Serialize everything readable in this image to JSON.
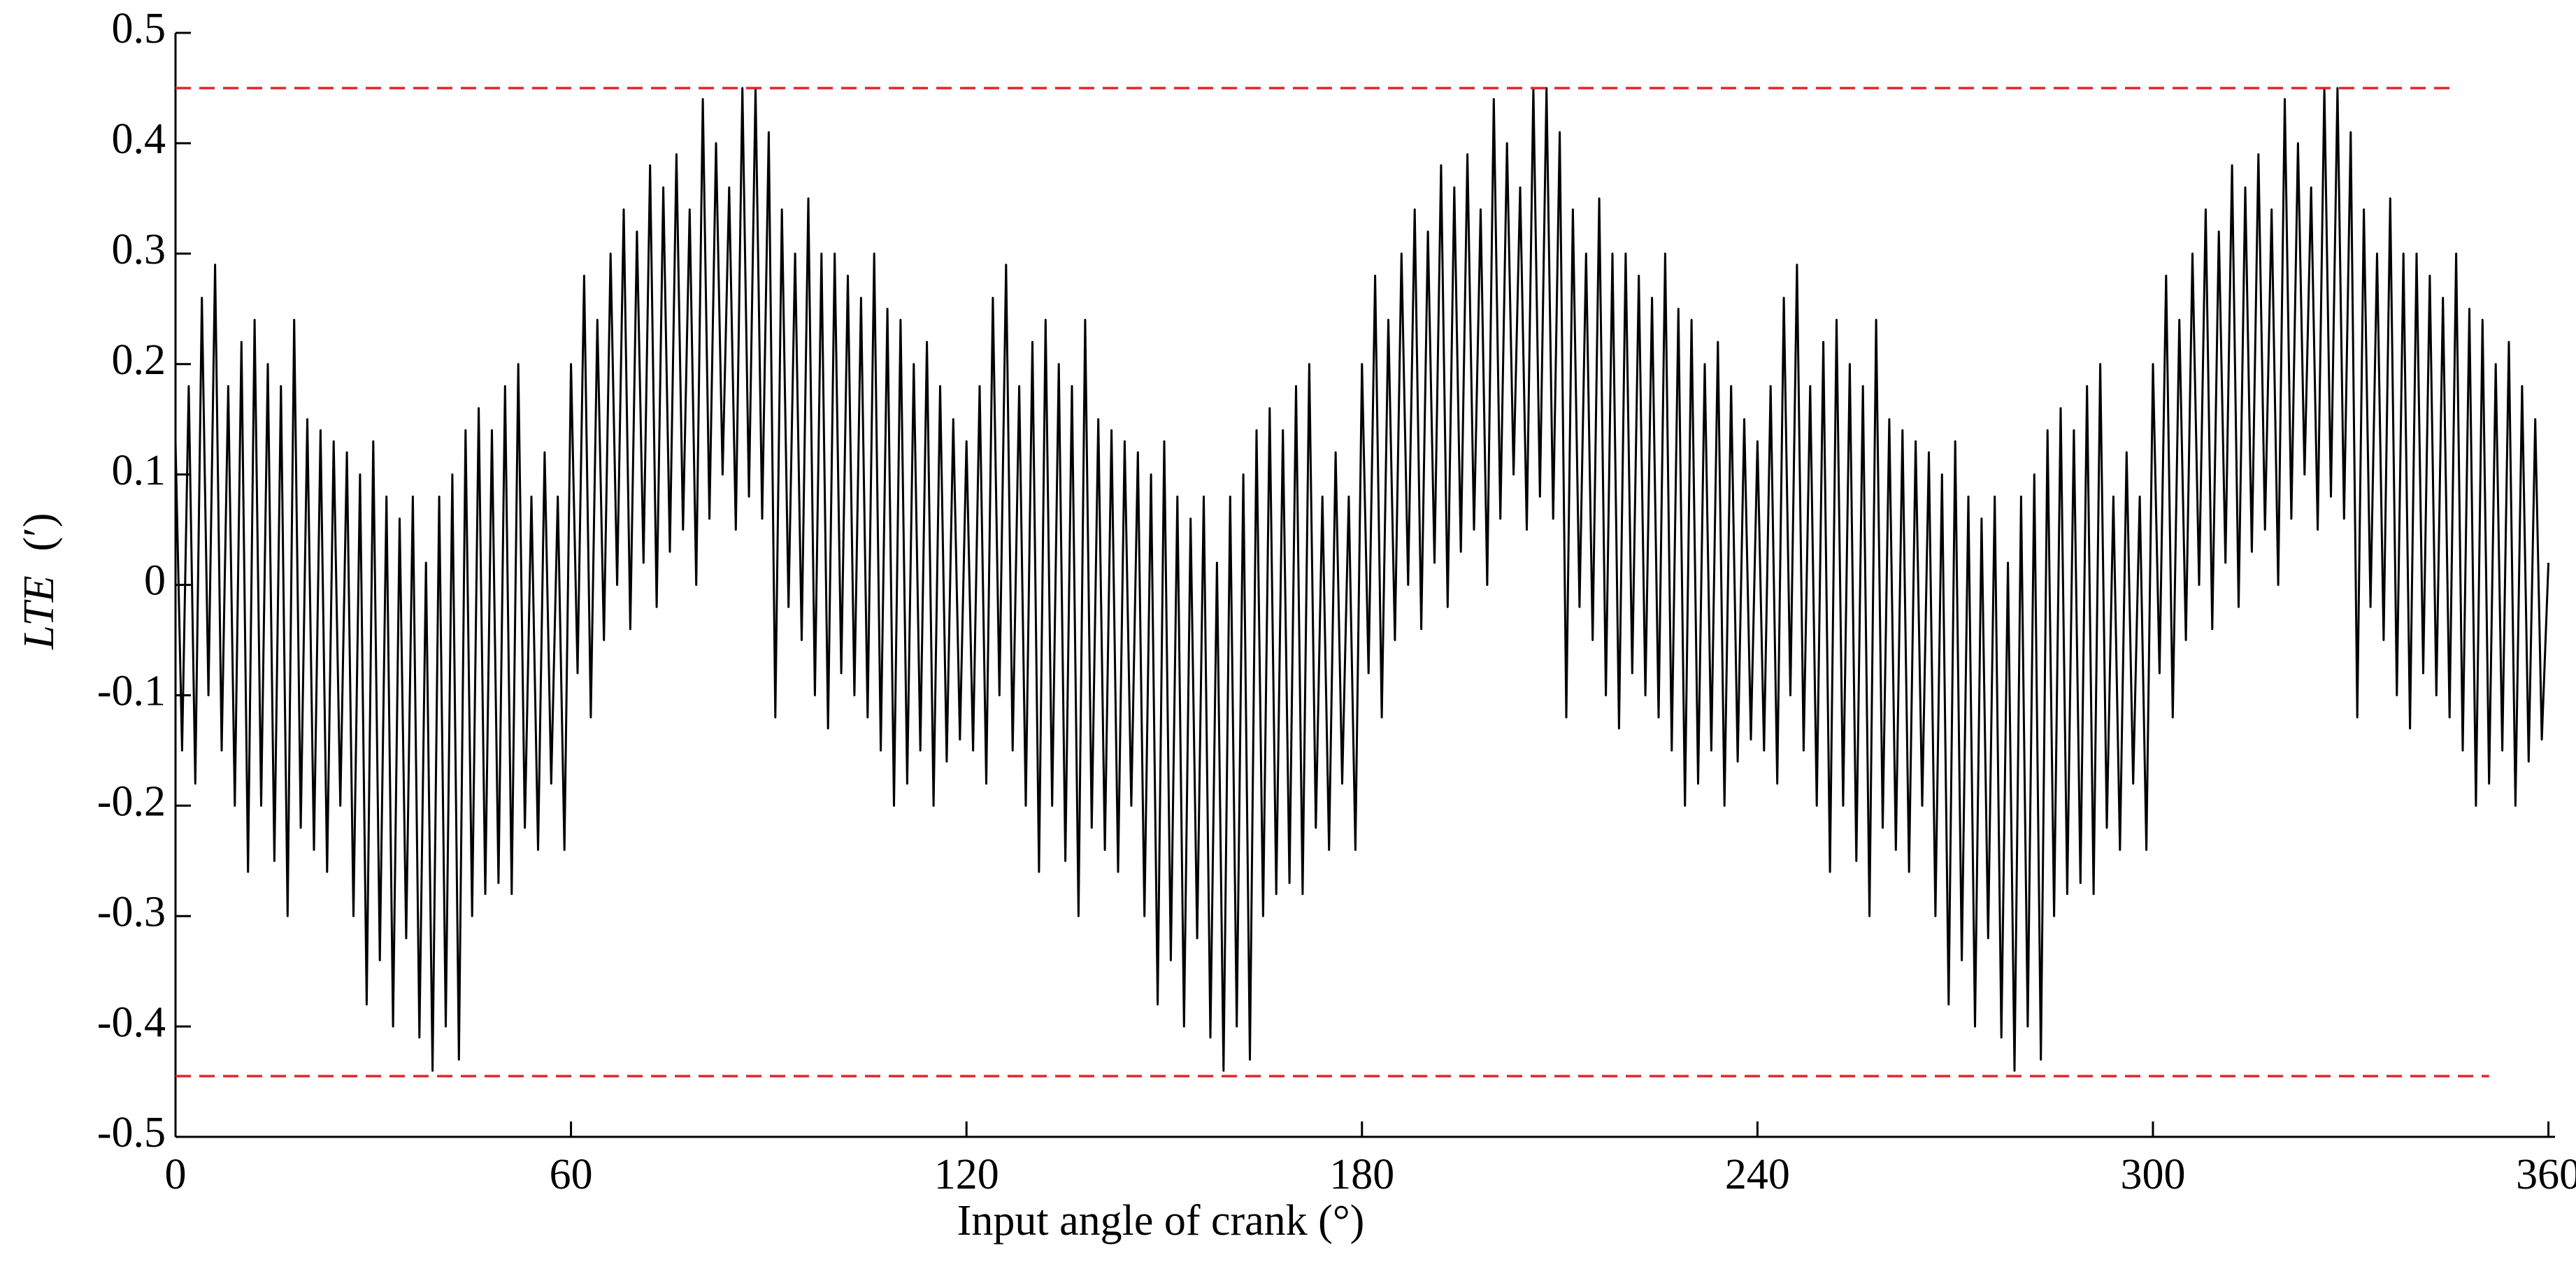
{
  "chart_data": {
    "type": "line",
    "xlabel": "Input angle of crank (°)",
    "ylabel": "LTE",
    "ylabel_unit": "(′)",
    "xlim": [
      0,
      361
    ],
    "ylim": [
      -0.5,
      0.5
    ],
    "xticks": [
      0,
      60,
      120,
      180,
      240,
      300,
      360
    ],
    "yticks": [
      0.5,
      0.4,
      0.3,
      0.2,
      0.1,
      0,
      -0.1,
      -0.2,
      -0.3,
      -0.4,
      -0.5
    ],
    "hlines": [
      {
        "value": 0.45,
        "xrange": [
          0,
          345
        ],
        "color": "#e0262a"
      },
      {
        "value": -0.445,
        "xrange": [
          0,
          351
        ],
        "color": "#e0262a"
      }
    ],
    "series": [
      {
        "color": "#000000",
        "x": [
          0,
          1,
          2,
          3,
          4,
          5,
          6,
          7,
          8,
          9,
          10,
          11,
          12,
          13,
          14,
          15,
          16,
          17,
          18,
          19,
          20,
          21,
          22,
          23,
          24,
          25,
          26,
          27,
          28,
          29,
          30,
          31,
          32,
          33,
          34,
          35,
          36,
          37,
          38,
          39,
          40,
          41,
          42,
          43,
          44,
          45,
          46,
          47,
          48,
          49,
          50,
          51,
          52,
          53,
          54,
          55,
          56,
          57,
          58,
          59,
          60,
          61,
          62,
          63,
          64,
          65,
          66,
          67,
          68,
          69,
          70,
          71,
          72,
          73,
          74,
          75,
          76,
          77,
          78,
          79,
          80,
          81,
          82,
          83,
          84,
          85,
          86,
          87,
          88,
          89,
          90,
          91,
          92,
          93,
          94,
          95,
          96,
          97,
          98,
          99,
          100,
          101,
          102,
          103,
          104,
          105,
          106,
          107,
          108,
          109,
          110,
          111,
          112,
          113,
          114,
          115,
          116,
          117,
          118,
          119,
          120,
          121,
          122,
          123,
          124,
          125,
          126,
          127,
          128,
          129,
          130,
          131,
          132,
          133,
          134,
          135,
          136,
          137,
          138,
          139,
          140,
          141,
          142,
          143,
          144,
          145,
          146,
          147,
          148,
          149,
          150,
          151,
          152,
          153,
          154,
          155,
          156,
          157,
          158,
          159,
          160,
          161,
          162,
          163,
          164,
          165,
          166,
          167,
          168,
          169,
          170,
          171,
          172,
          173,
          174,
          175,
          176,
          177,
          178,
          179,
          180,
          181,
          182,
          183,
          184,
          185,
          186,
          187,
          188,
          189,
          190,
          191,
          192,
          193,
          194,
          195,
          196,
          197,
          198,
          199,
          200,
          201,
          202,
          203,
          204,
          205,
          206,
          207,
          208,
          209,
          210,
          211,
          212,
          213,
          214,
          215,
          216,
          217,
          218,
          219,
          220,
          221,
          222,
          223,
          224,
          225,
          226,
          227,
          228,
          229,
          230,
          231,
          232,
          233,
          234,
          235,
          236,
          237,
          238,
          239,
          240,
          241,
          242,
          243,
          244,
          245,
          246,
          247,
          248,
          249,
          250,
          251,
          252,
          253,
          254,
          255,
          256,
          257,
          258,
          259,
          260,
          261,
          262,
          263,
          264,
          265,
          266,
          267,
          268,
          269,
          270,
          271,
          272,
          273,
          274,
          275,
          276,
          277,
          278,
          279,
          280,
          281,
          282,
          283,
          284,
          285,
          286,
          287,
          288,
          289,
          290,
          291,
          292,
          293,
          294,
          295,
          296,
          297,
          298,
          299,
          300,
          301,
          302,
          303,
          304,
          305,
          306,
          307,
          308,
          309,
          310,
          311,
          312,
          313,
          314,
          315,
          316,
          317,
          318,
          319,
          320,
          321,
          322,
          323,
          324,
          325,
          326,
          327,
          328,
          329,
          330,
          331,
          332,
          333,
          334,
          335,
          336,
          337,
          338,
          339,
          340,
          341,
          342,
          343,
          344,
          345,
          346,
          347,
          348,
          349,
          350,
          351,
          352,
          353,
          354,
          355,
          356,
          357,
          358,
          359,
          360
        ],
        "values": [
          0.13,
          -0.15,
          0.18,
          -0.18,
          0.26,
          -0.1,
          0.29,
          -0.15,
          0.18,
          -0.2,
          0.22,
          -0.26,
          0.24,
          -0.2,
          0.2,
          -0.25,
          0.18,
          -0.3,
          0.24,
          -0.22,
          0.15,
          -0.24,
          0.14,
          -0.26,
          0.13,
          -0.2,
          0.12,
          -0.3,
          0.1,
          -0.38,
          0.13,
          -0.34,
          0.08,
          -0.4,
          0.06,
          -0.32,
          0.08,
          -0.41,
          0.02,
          -0.44,
          0.08,
          -0.4,
          0.1,
          -0.43,
          0.14,
          -0.3,
          0.16,
          -0.28,
          0.14,
          -0.27,
          0.18,
          -0.28,
          0.2,
          -0.22,
          0.08,
          -0.24,
          0.12,
          -0.18,
          0.08,
          -0.24,
          0.2,
          -0.08,
          0.28,
          -0.12,
          0.24,
          -0.05,
          0.3,
          0.0,
          0.34,
          -0.04,
          0.32,
          0.02,
          0.38,
          -0.02,
          0.36,
          0.03,
          0.39,
          0.05,
          0.34,
          0.0,
          0.44,
          0.06,
          0.4,
          0.1,
          0.36,
          0.05,
          0.45,
          0.08,
          0.45,
          0.06,
          0.41,
          -0.12,
          0.34,
          -0.02,
          0.3,
          -0.05,
          0.35,
          -0.1,
          0.3,
          -0.13,
          0.3,
          -0.08,
          0.28,
          -0.1,
          0.26,
          -0.12,
          0.3,
          -0.15,
          0.25,
          -0.2,
          0.24,
          -0.18,
          0.2,
          -0.15,
          0.22,
          -0.2,
          0.18,
          -0.16,
          0.15,
          -0.14,
          0.13,
          -0.15,
          0.18,
          -0.18,
          0.26,
          -0.1,
          0.29,
          -0.15,
          0.18,
          -0.2,
          0.22,
          -0.26,
          0.24,
          -0.2,
          0.2,
          -0.25,
          0.18,
          -0.3,
          0.24,
          -0.22,
          0.15,
          -0.24,
          0.14,
          -0.26,
          0.13,
          -0.2,
          0.12,
          -0.3,
          0.1,
          -0.38,
          0.13,
          -0.34,
          0.08,
          -0.4,
          0.06,
          -0.32,
          0.08,
          -0.41,
          0.02,
          -0.44,
          0.08,
          -0.4,
          0.1,
          -0.43,
          0.14,
          -0.3,
          0.16,
          -0.28,
          0.14,
          -0.27,
          0.18,
          -0.28,
          0.2,
          -0.22,
          0.08,
          -0.24,
          0.12,
          -0.18,
          0.08,
          -0.24,
          0.2,
          -0.08,
          0.28,
          -0.12,
          0.24,
          -0.05,
          0.3,
          0.0,
          0.34,
          -0.04,
          0.32,
          0.02,
          0.38,
          -0.02,
          0.36,
          0.03,
          0.39,
          0.05,
          0.34,
          0.0,
          0.44,
          0.06,
          0.4,
          0.1,
          0.36,
          0.05,
          0.45,
          0.08,
          0.45,
          0.06,
          0.41,
          -0.12,
          0.34,
          -0.02,
          0.3,
          -0.05,
          0.35,
          -0.1,
          0.3,
          -0.13,
          0.3,
          -0.08,
          0.28,
          -0.1,
          0.26,
          -0.12,
          0.3,
          -0.15,
          0.25,
          -0.2,
          0.24,
          -0.18,
          0.2,
          -0.15,
          0.22,
          -0.2,
          0.18,
          -0.16,
          0.15,
          -0.14,
          0.13,
          -0.15,
          0.18,
          -0.18,
          0.26,
          -0.1,
          0.29,
          -0.15,
          0.18,
          -0.2,
          0.22,
          -0.26,
          0.24,
          -0.2,
          0.2,
          -0.25,
          0.18,
          -0.3,
          0.24,
          -0.22,
          0.15,
          -0.24,
          0.14,
          -0.26,
          0.13,
          -0.2,
          0.12,
          -0.3,
          0.1,
          -0.38,
          0.13,
          -0.34,
          0.08,
          -0.4,
          0.06,
          -0.32,
          0.08,
          -0.41,
          0.02,
          -0.44,
          0.08,
          -0.4,
          0.1,
          -0.43,
          0.14,
          -0.3,
          0.16,
          -0.28,
          0.14,
          -0.27,
          0.18,
          -0.28,
          0.2,
          -0.22,
          0.08,
          -0.24,
          0.12,
          -0.18,
          0.08,
          -0.24,
          0.2,
          -0.08,
          0.28,
          -0.12,
          0.24,
          -0.05,
          0.3,
          0.0,
          0.34,
          -0.04,
          0.32,
          0.02,
          0.38,
          -0.02,
          0.36,
          0.03,
          0.39,
          0.05,
          0.34,
          0.0,
          0.44,
          0.06,
          0.4,
          0.1,
          0.36,
          0.05,
          0.45,
          0.08,
          0.45,
          0.06,
          0.41,
          -0.12,
          0.34,
          -0.02,
          0.3,
          -0.05,
          0.35,
          -0.1,
          0.3,
          -0.13,
          0.3,
          -0.08,
          0.28,
          -0.1,
          0.26,
          -0.12,
          0.3,
          -0.15,
          0.25,
          -0.2,
          0.24,
          -0.18,
          0.2,
          -0.15,
          0.22,
          -0.2,
          0.18,
          -0.16,
          0.15,
          -0.14,
          0.02
        ]
      }
    ]
  }
}
